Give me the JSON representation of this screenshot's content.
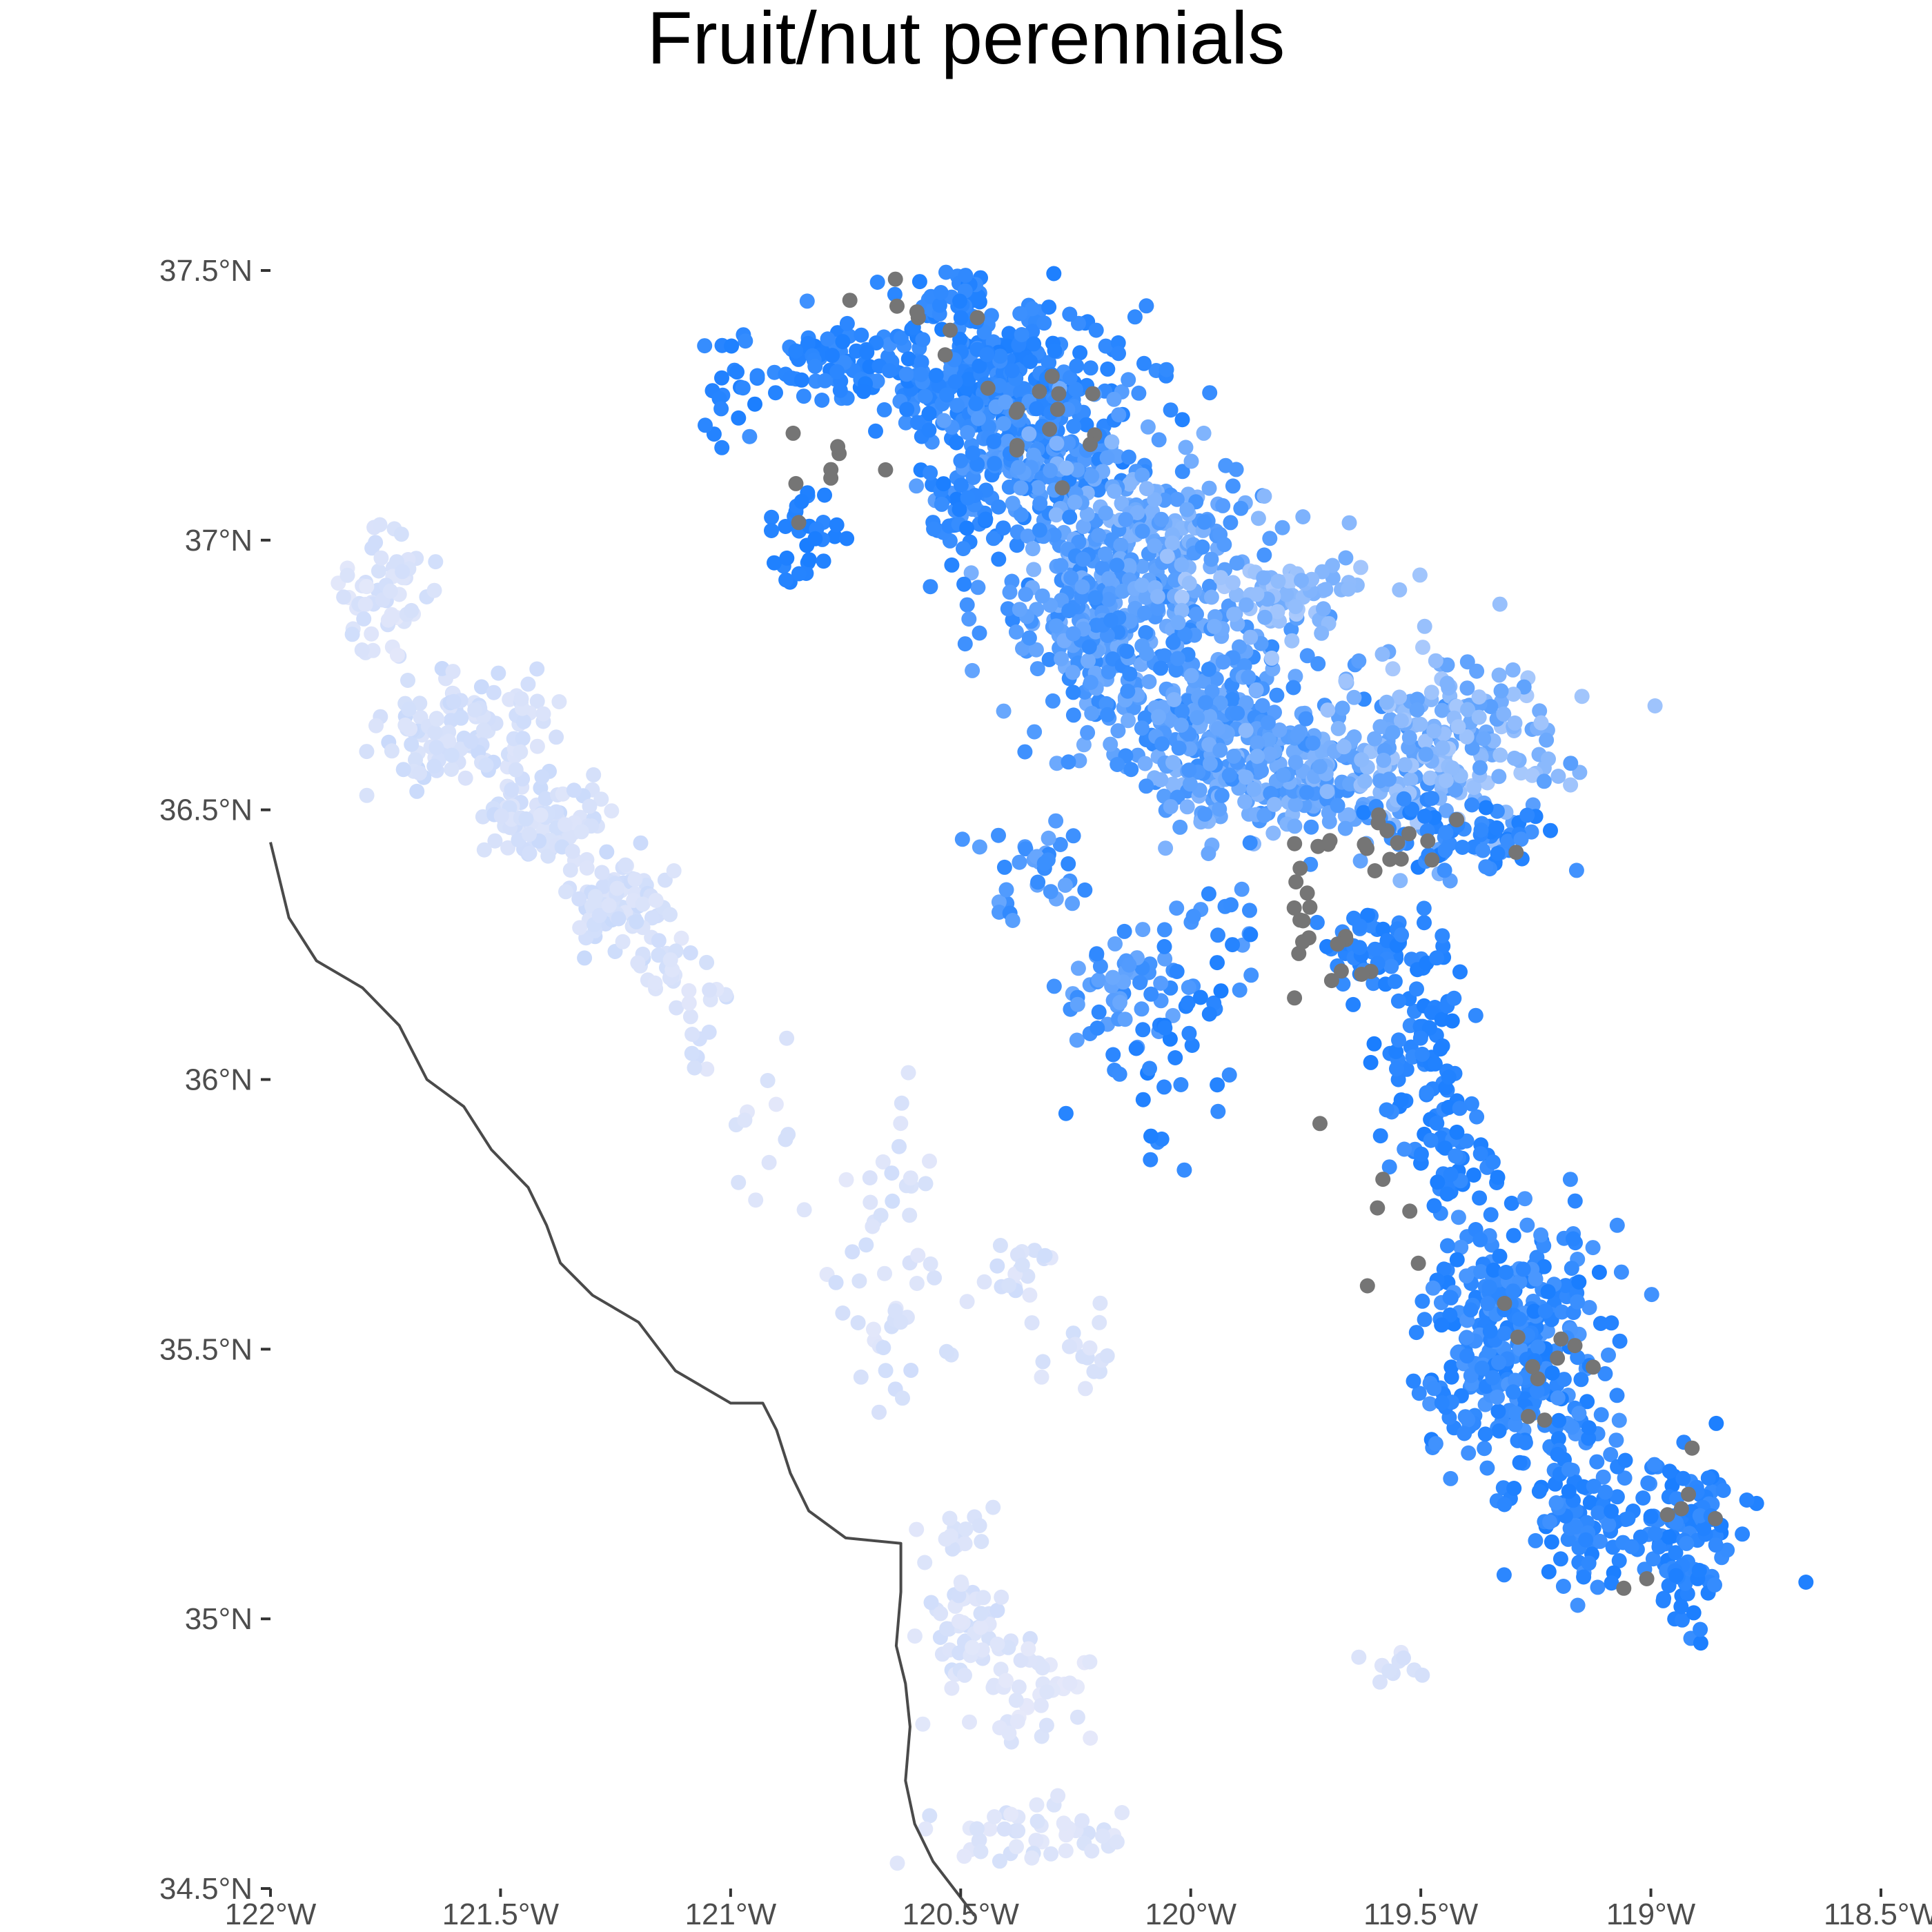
{
  "title": "Fruit/nut perennials",
  "colors": {
    "point_high": "#1a7eff",
    "point_low": "#e8eafa",
    "point_na": "#757575",
    "coast": "#4a4a4a",
    "axis_text": "#4d4d4d"
  },
  "chart_data": {
    "type": "scatter",
    "title": "Fruit/nut perennials",
    "xlabel": "",
    "ylabel": "",
    "xlim": [
      -122,
      -118.5
    ],
    "ylim": [
      34.5,
      37.5
    ],
    "grid": false,
    "legend": "none",
    "x_ticks": [
      {
        "value": -122,
        "label": "122°W"
      },
      {
        "value": -121.5,
        "label": "121.5°W"
      },
      {
        "value": -121,
        "label": "121°W"
      },
      {
        "value": -120.5,
        "label": "120.5°W"
      },
      {
        "value": -120,
        "label": "120°W"
      },
      {
        "value": -119.5,
        "label": "119.5°W"
      },
      {
        "value": -119,
        "label": "119°W"
      },
      {
        "value": -118.5,
        "label": "118.5°W"
      }
    ],
    "y_ticks": [
      {
        "value": 37.5,
        "label": "37.5°N"
      },
      {
        "value": 37,
        "label": "37°N"
      },
      {
        "value": 36.5,
        "label": "36.5°N"
      },
      {
        "value": 36,
        "label": "36°N"
      },
      {
        "value": 35.5,
        "label": "35.5°N"
      },
      {
        "value": 35,
        "label": "35°N"
      },
      {
        "value": 34.5,
        "label": "34.5°N"
      }
    ],
    "coastline": [
      [
        -122,
        36.44
      ],
      [
        -121.96,
        36.3
      ],
      [
        -121.9,
        36.22
      ],
      [
        -121.8,
        36.17
      ],
      [
        -121.72,
        36.1
      ],
      [
        -121.66,
        36.0
      ],
      [
        -121.58,
        35.95
      ],
      [
        -121.52,
        35.87
      ],
      [
        -121.44,
        35.8
      ],
      [
        -121.4,
        35.73
      ],
      [
        -121.37,
        35.66
      ],
      [
        -121.3,
        35.6
      ],
      [
        -121.2,
        35.55
      ],
      [
        -121.12,
        35.46
      ],
      [
        -121.0,
        35.4
      ],
      [
        -120.93,
        35.4
      ],
      [
        -120.9,
        35.35
      ],
      [
        -120.87,
        35.27
      ],
      [
        -120.83,
        35.2
      ],
      [
        -120.75,
        35.15
      ],
      [
        -120.63,
        35.14
      ],
      [
        -120.63,
        35.05
      ],
      [
        -120.64,
        34.95
      ],
      [
        -120.62,
        34.88
      ],
      [
        -120.61,
        34.8
      ],
      [
        -120.62,
        34.7
      ],
      [
        -120.6,
        34.62
      ],
      [
        -120.56,
        34.55
      ],
      [
        -120.47,
        34.45
      ]
    ],
    "clusters": [
      {
        "lon": -120.45,
        "lat": 37.3,
        "slon": 0.15,
        "slat": 0.07,
        "n": 300,
        "v": [
          0.8,
          1.0
        ]
      },
      {
        "lon": -120.55,
        "lat": 37.45,
        "slon": 0.06,
        "slat": 0.04,
        "n": 40,
        "v": [
          0.85,
          1.0
        ]
      },
      {
        "lon": -120.8,
        "lat": 37.33,
        "slon": 0.09,
        "slat": 0.03,
        "n": 60,
        "v": [
          0.85,
          1.0
        ]
      },
      {
        "lon": -120.35,
        "lat": 37.15,
        "slon": 0.12,
        "slat": 0.08,
        "n": 230,
        "v": [
          0.65,
          0.95
        ]
      },
      {
        "lon": -120.1,
        "lat": 37.0,
        "slon": 0.12,
        "slat": 0.08,
        "n": 230,
        "v": [
          0.45,
          0.8
        ]
      },
      {
        "lon": -120.2,
        "lat": 36.85,
        "slon": 0.11,
        "slat": 0.07,
        "n": 180,
        "v": [
          0.55,
          0.9
        ]
      },
      {
        "lon": -120.0,
        "lat": 36.7,
        "slon": 0.12,
        "slat": 0.08,
        "n": 220,
        "v": [
          0.55,
          0.9
        ]
      },
      {
        "lon": -119.8,
        "lat": 36.57,
        "slon": 0.16,
        "slat": 0.07,
        "n": 280,
        "v": [
          0.45,
          0.85
        ]
      },
      {
        "lon": -119.45,
        "lat": 36.62,
        "slon": 0.12,
        "slat": 0.09,
        "n": 200,
        "v": [
          0.3,
          0.7
        ]
      },
      {
        "lon": -119.8,
        "lat": 36.9,
        "slon": 0.12,
        "slat": 0.04,
        "n": 90,
        "v": [
          0.3,
          0.6
        ]
      },
      {
        "lon": -119.4,
        "lat": 36.45,
        "slon": 0.1,
        "slat": 0.03,
        "n": 70,
        "v": [
          0.8,
          1.0
        ]
      },
      {
        "lon": -120.5,
        "lat": 37.05,
        "slon": 0.05,
        "slat": 0.06,
        "n": 35,
        "v": [
          0.85,
          1.0
        ]
      },
      {
        "lon": -120.85,
        "lat": 37.0,
        "slon": 0.05,
        "slat": 0.05,
        "n": 30,
        "v": [
          0.9,
          1.0
        ]
      },
      {
        "lon": -121.0,
        "lat": 37.25,
        "slon": 0.03,
        "slat": 0.08,
        "n": 15,
        "v": [
          0.9,
          1.0
        ]
      },
      {
        "lon": -119.58,
        "lat": 36.25,
        "slon": 0.06,
        "slat": 0.04,
        "n": 60,
        "v": [
          0.85,
          1.0
        ]
      },
      {
        "lon": -119.5,
        "lat": 36.05,
        "slon": 0.05,
        "slat": 0.1,
        "n": 70,
        "v": [
          0.85,
          1.0
        ]
      },
      {
        "lon": -119.42,
        "lat": 35.85,
        "slon": 0.04,
        "slat": 0.06,
        "n": 40,
        "v": [
          0.85,
          1.0
        ]
      },
      {
        "lon": -119.3,
        "lat": 35.52,
        "slon": 0.1,
        "slat": 0.11,
        "n": 330,
        "v": [
          0.75,
          1.0
        ]
      },
      {
        "lon": -119.15,
        "lat": 35.2,
        "slon": 0.07,
        "slat": 0.06,
        "n": 100,
        "v": [
          0.8,
          1.0
        ]
      },
      {
        "lon": -118.92,
        "lat": 35.15,
        "slon": 0.06,
        "slat": 0.09,
        "n": 110,
        "v": [
          0.85,
          1.0
        ]
      },
      {
        "lon": -120.15,
        "lat": 36.18,
        "slon": 0.08,
        "slat": 0.05,
        "n": 55,
        "v": [
          0.6,
          0.9
        ]
      },
      {
        "lon": -120.35,
        "lat": 36.38,
        "slon": 0.07,
        "slat": 0.05,
        "n": 35,
        "v": [
          0.6,
          0.9
        ]
      },
      {
        "lon": -120.1,
        "lat": 36.0,
        "slon": 0.08,
        "slat": 0.08,
        "n": 30,
        "v": [
          0.85,
          1.0
        ]
      },
      {
        "lon": -119.95,
        "lat": 36.25,
        "slon": 0.06,
        "slat": 0.1,
        "n": 25,
        "v": [
          0.7,
          1.0
        ]
      },
      {
        "lon": -121.75,
        "lat": 36.9,
        "slon": 0.05,
        "slat": 0.05,
        "n": 60,
        "v": [
          0.02,
          0.12
        ]
      },
      {
        "lon": -121.58,
        "lat": 36.65,
        "slon": 0.09,
        "slat": 0.06,
        "n": 120,
        "v": [
          0.05,
          0.15
        ]
      },
      {
        "lon": -121.4,
        "lat": 36.48,
        "slon": 0.07,
        "slat": 0.05,
        "n": 90,
        "v": [
          0.05,
          0.15
        ]
      },
      {
        "lon": -121.25,
        "lat": 36.32,
        "slon": 0.05,
        "slat": 0.05,
        "n": 80,
        "v": [
          0.05,
          0.15
        ]
      },
      {
        "lon": -121.1,
        "lat": 36.15,
        "slon": 0.05,
        "slat": 0.06,
        "n": 35,
        "v": [
          0.03,
          0.12
        ]
      },
      {
        "lon": -120.95,
        "lat": 35.9,
        "slon": 0.05,
        "slat": 0.08,
        "n": 12,
        "v": [
          0.02,
          0.1
        ]
      },
      {
        "lon": -120.65,
        "lat": 35.65,
        "slon": 0.06,
        "slat": 0.15,
        "n": 50,
        "v": [
          0.02,
          0.12
        ]
      },
      {
        "lon": -120.4,
        "lat": 35.6,
        "slon": 0.05,
        "slat": 0.05,
        "n": 20,
        "v": [
          0.03,
          0.12
        ]
      },
      {
        "lon": -120.25,
        "lat": 35.48,
        "slon": 0.04,
        "slat": 0.05,
        "n": 15,
        "v": [
          0.03,
          0.12
        ]
      },
      {
        "lon": -120.48,
        "lat": 34.98,
        "slon": 0.05,
        "slat": 0.04,
        "n": 50,
        "v": [
          0.03,
          0.12
        ]
      },
      {
        "lon": -120.35,
        "lat": 34.88,
        "slon": 0.07,
        "slat": 0.05,
        "n": 40,
        "v": [
          0.01,
          0.08
        ]
      },
      {
        "lon": -120.5,
        "lat": 35.12,
        "slon": 0.04,
        "slat": 0.06,
        "n": 18,
        "v": [
          0.03,
          0.1
        ]
      },
      {
        "lon": -120.4,
        "lat": 34.6,
        "slon": 0.1,
        "slat": 0.03,
        "n": 35,
        "v": [
          0.02,
          0.1
        ]
      },
      {
        "lon": -120.22,
        "lat": 34.6,
        "slon": 0.07,
        "slat": 0.02,
        "n": 12,
        "v": [
          0.0,
          0.08
        ]
      },
      {
        "lon": -119.55,
        "lat": 34.91,
        "slon": 0.05,
        "slat": 0.02,
        "n": 10,
        "v": [
          0.03,
          0.1
        ]
      }
    ],
    "missing_value_clusters": [
      {
        "lon": -120.6,
        "lat": 37.4,
        "slon": 0.08,
        "slat": 0.05,
        "n": 8
      },
      {
        "lon": -120.3,
        "lat": 37.25,
        "slon": 0.07,
        "slat": 0.06,
        "n": 14
      },
      {
        "lon": -120.75,
        "lat": 37.12,
        "slon": 0.06,
        "slat": 0.04,
        "n": 8
      },
      {
        "lon": -119.55,
        "lat": 36.43,
        "slon": 0.12,
        "slat": 0.04,
        "n": 18
      },
      {
        "lon": -119.75,
        "lat": 36.33,
        "slon": 0.05,
        "slat": 0.06,
        "n": 8
      },
      {
        "lon": -119.7,
        "lat": 36.23,
        "slon": 0.04,
        "slat": 0.05,
        "n": 10
      },
      {
        "lon": -119.55,
        "lat": 35.75,
        "slon": 0.05,
        "slat": 0.08,
        "n": 6
      },
      {
        "lon": -119.25,
        "lat": 35.5,
        "slon": 0.08,
        "slat": 0.08,
        "n": 10
      },
      {
        "lon": -118.92,
        "lat": 35.18,
        "slon": 0.08,
        "slat": 0.08,
        "n": 7
      }
    ]
  }
}
